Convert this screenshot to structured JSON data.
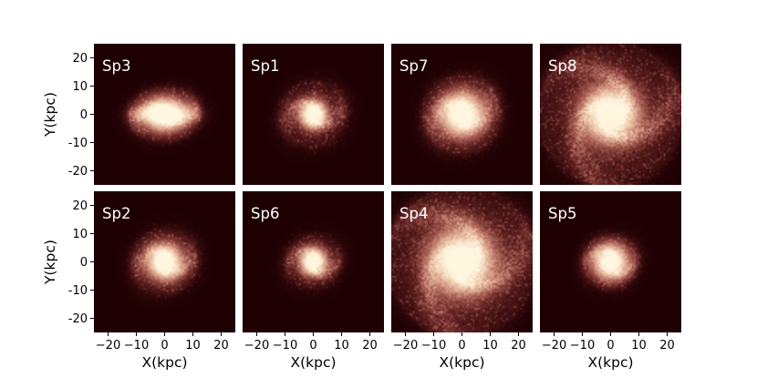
{
  "chart_data": {
    "type": "heatmap",
    "xlabel": "X(kpc)",
    "ylabel": "Y(kpc)",
    "xlim": [
      -25,
      25
    ],
    "ylim": [
      -25,
      25
    ],
    "xticks": [
      -20,
      -10,
      0,
      10,
      20
    ],
    "yticks": [
      20,
      10,
      0,
      -10,
      -20
    ],
    "colormap": [
      "#1e0003",
      "#5a1e1e",
      "#a35a50",
      "#d8a08a",
      "#f2d2b4",
      "#fff6e0"
    ],
    "panels": [
      {
        "label": "Sp3",
        "row": 0,
        "col": 0,
        "disk_radius_kpc": 12,
        "core_radius_kpc": 5,
        "arms": 2,
        "inclination": 0.75,
        "has_bar": true,
        "seed": 3
      },
      {
        "label": "Sp1",
        "row": 0,
        "col": 1,
        "disk_radius_kpc": 11,
        "core_radius_kpc": 3,
        "arms": 2,
        "inclination": 1.0,
        "has_bar": false,
        "seed": 1
      },
      {
        "label": "Sp7",
        "row": 0,
        "col": 2,
        "disk_radius_kpc": 13,
        "core_radius_kpc": 5,
        "arms": 2,
        "inclination": 1.0,
        "has_bar": false,
        "seed": 7
      },
      {
        "label": "Sp8",
        "row": 0,
        "col": 3,
        "disk_radius_kpc": 24,
        "core_radius_kpc": 6,
        "arms": 3,
        "inclination": 1.0,
        "has_bar": false,
        "seed": 8
      },
      {
        "label": "Sp2",
        "row": 1,
        "col": 0,
        "disk_radius_kpc": 11,
        "core_radius_kpc": 4,
        "arms": 2,
        "inclination": 1.0,
        "has_bar": false,
        "seed": 2
      },
      {
        "label": "Sp6",
        "row": 1,
        "col": 1,
        "disk_radius_kpc": 9,
        "core_radius_kpc": 3,
        "arms": 2,
        "inclination": 1.0,
        "has_bar": false,
        "seed": 6
      },
      {
        "label": "Sp4",
        "row": 1,
        "col": 2,
        "disk_radius_kpc": 25,
        "core_radius_kpc": 7,
        "arms": 3,
        "inclination": 1.0,
        "has_bar": false,
        "seed": 4
      },
      {
        "label": "Sp5",
        "row": 1,
        "col": 3,
        "disk_radius_kpc": 9,
        "core_radius_kpc": 4,
        "arms": 2,
        "inclination": 1.0,
        "has_bar": false,
        "seed": 5
      }
    ]
  }
}
